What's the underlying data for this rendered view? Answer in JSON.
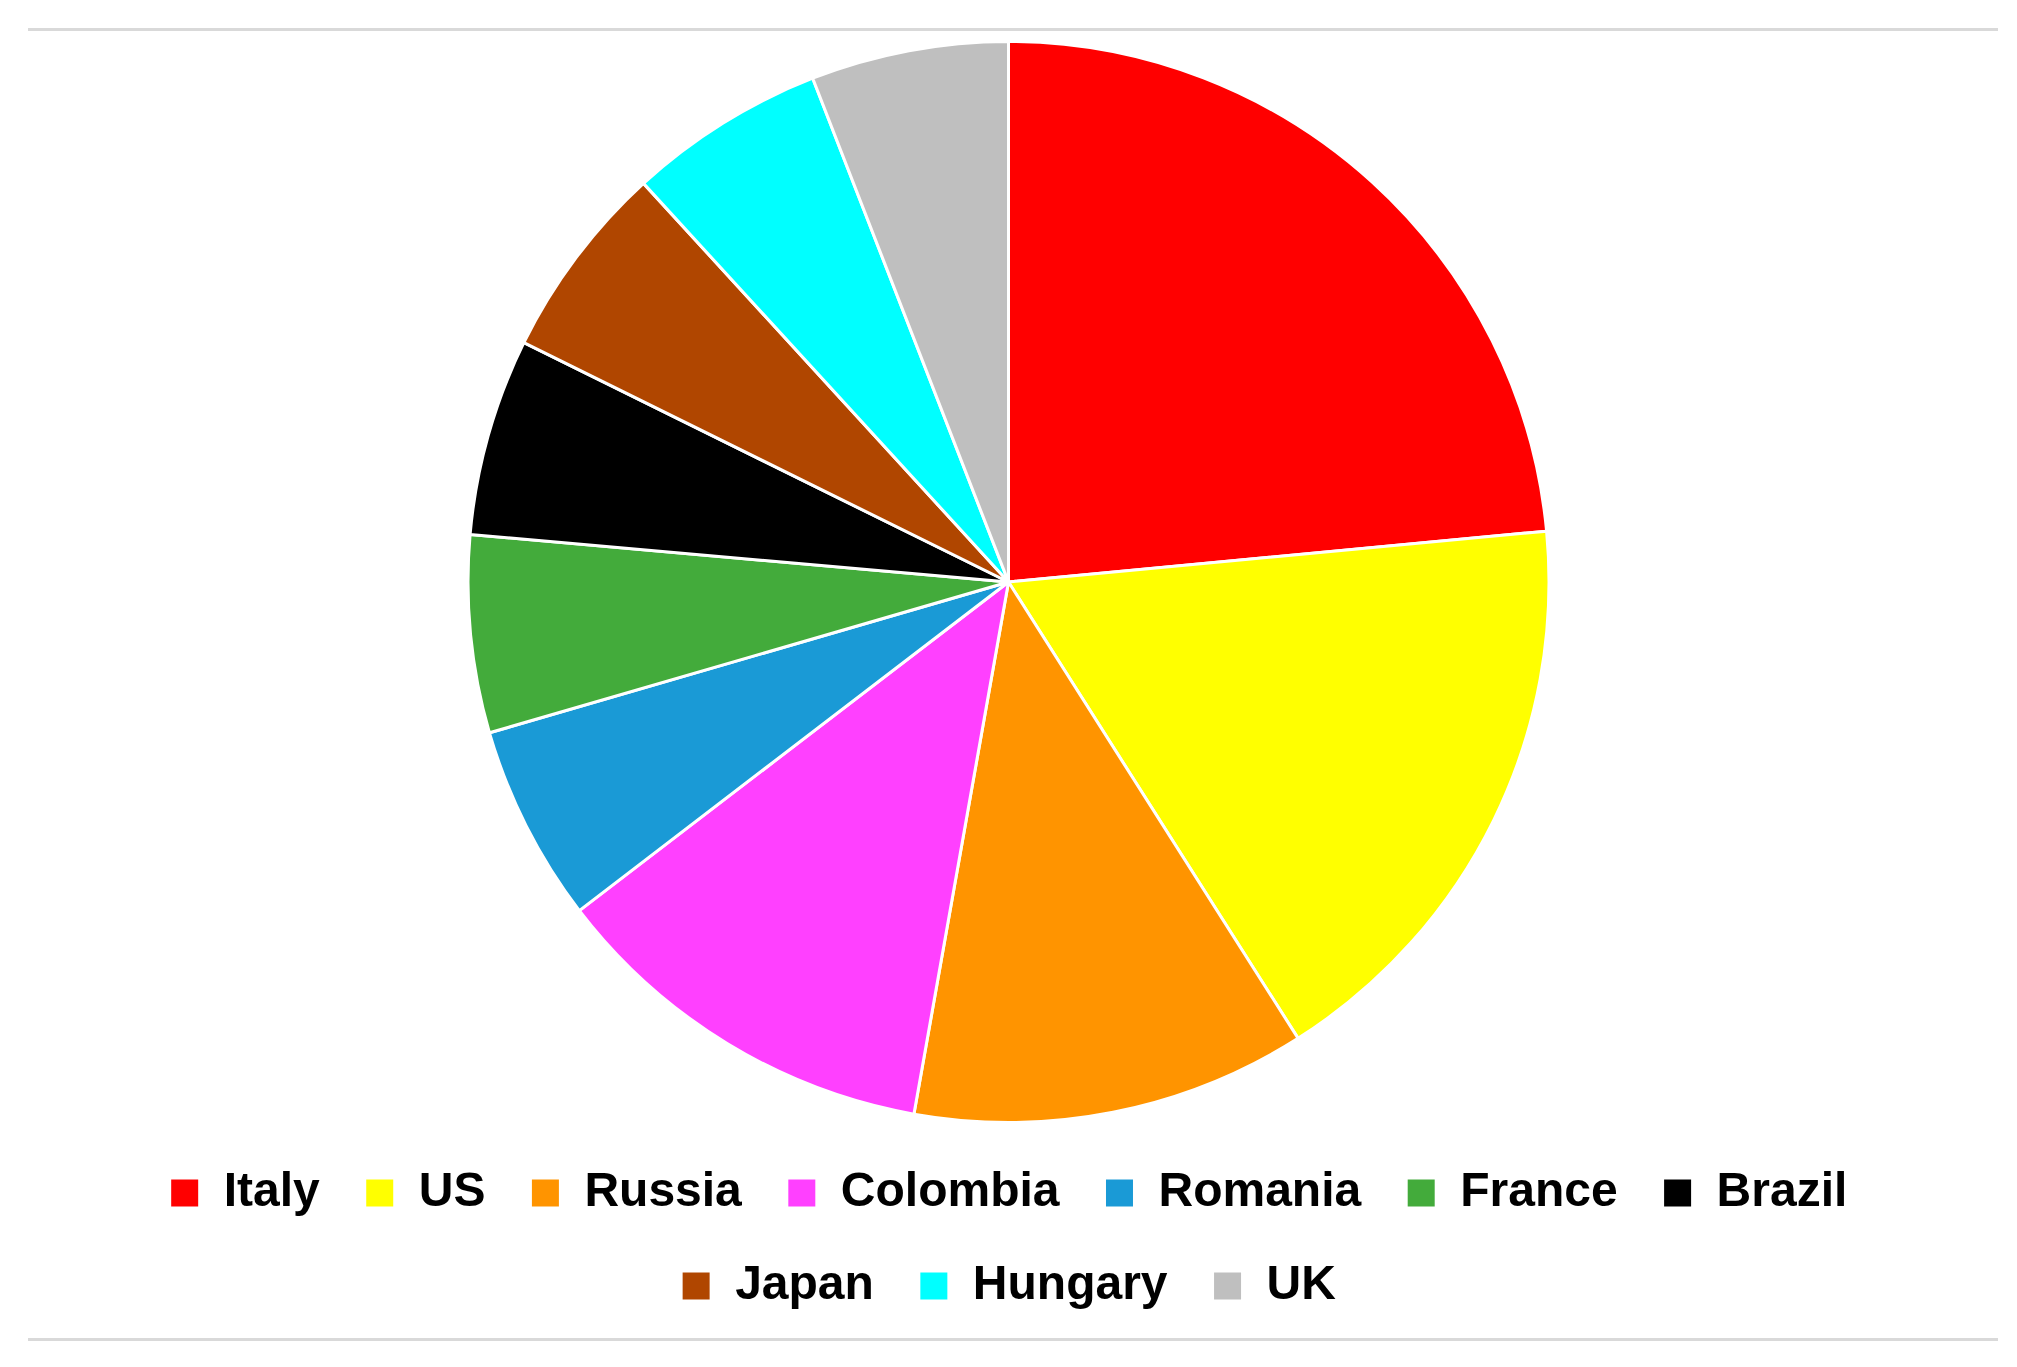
{
  "chart_data": {
    "type": "pie",
    "categories": [
      "Italy",
      "US",
      "Russia",
      "Colombia",
      "Romania",
      "France",
      "Brazil",
      "Japan",
      "Hungary",
      "UK"
    ],
    "values": [
      23.5,
      17.5,
      11.8,
      11.8,
      5.9,
      5.9,
      5.9,
      5.9,
      5.9,
      5.9
    ],
    "colors": [
      "#ff0000",
      "#ffff00",
      "#ff9400",
      "#ff40ff",
      "#1a9ad6",
      "#43ab3b",
      "#000000",
      "#b04600",
      "#00ffff",
      "#bfbfbf"
    ],
    "legend": "bottom"
  }
}
